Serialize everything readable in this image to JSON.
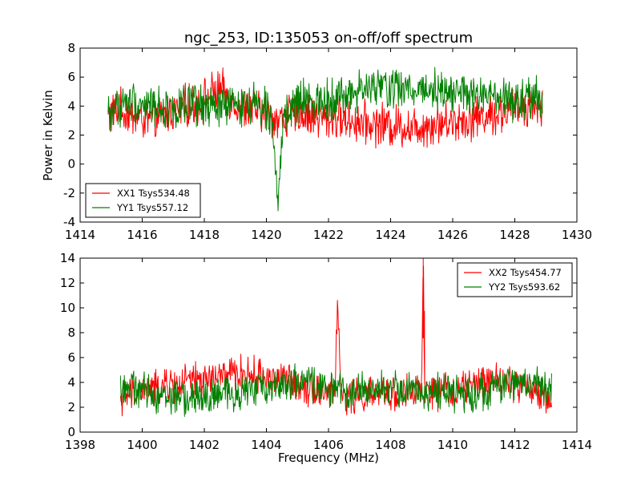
{
  "colors": {
    "xx": "#ff0000",
    "yy": "#008000"
  },
  "chart_data": [
    {
      "type": "line",
      "title": "ngc_253, ID:135053 on-off/off spectrum",
      "xlabel": "",
      "ylabel": "Power in Kelvin",
      "xlim": [
        1414,
        1430
      ],
      "ylim": [
        -4,
        8
      ],
      "xticks": [
        1414,
        1416,
        1418,
        1420,
        1422,
        1424,
        1426,
        1428,
        1430
      ],
      "yticks": [
        -4,
        -2,
        0,
        2,
        4,
        6,
        8
      ],
      "grid": false,
      "legend": "lower-left",
      "series": [
        {
          "name": "XX1 Tsys534.48",
          "color": "#ff0000",
          "x": [
            1414.9,
            1415.2,
            1415.5,
            1415.8,
            1416.1,
            1416.4,
            1416.7,
            1417.0,
            1417.3,
            1417.6,
            1417.9,
            1418.2,
            1418.5,
            1418.8,
            1419.1,
            1419.4,
            1419.7,
            1420.0,
            1420.2,
            1420.4,
            1420.6,
            1420.8,
            1421.0,
            1421.3,
            1421.6,
            1421.9,
            1422.2,
            1422.5,
            1422.8,
            1423.1,
            1423.4,
            1423.7,
            1424.0,
            1424.3,
            1424.6,
            1424.9,
            1425.2,
            1425.5,
            1425.8,
            1426.1,
            1426.4,
            1426.7,
            1427.0,
            1427.3,
            1427.6,
            1427.9,
            1428.2,
            1428.5,
            1428.9
          ],
          "y": [
            3.2,
            3.8,
            3.5,
            3.3,
            3.0,
            3.1,
            3.4,
            3.6,
            3.9,
            4.1,
            4.3,
            4.8,
            5.1,
            4.6,
            4.0,
            3.8,
            3.6,
            3.5,
            3.3,
            3.0,
            3.2,
            3.4,
            3.5,
            3.4,
            3.3,
            3.1,
            3.2,
            3.1,
            3.0,
            2.9,
            2.7,
            2.8,
            2.6,
            2.7,
            2.5,
            2.6,
            2.7,
            2.8,
            2.9,
            3.0,
            3.1,
            3.2,
            3.3,
            3.4,
            3.6,
            3.8,
            4.0,
            4.1,
            4.0
          ]
        },
        {
          "name": "YY1 Tsys557.12",
          "color": "#008000",
          "x": [
            1414.9,
            1415.2,
            1415.5,
            1415.8,
            1416.1,
            1416.4,
            1416.7,
            1417.0,
            1417.3,
            1417.6,
            1417.9,
            1418.2,
            1418.5,
            1418.8,
            1419.1,
            1419.4,
            1419.7,
            1420.0,
            1420.2,
            1420.35,
            1420.45,
            1420.6,
            1420.8,
            1421.0,
            1421.3,
            1421.6,
            1421.9,
            1422.2,
            1422.5,
            1422.8,
            1423.1,
            1423.4,
            1423.7,
            1424.0,
            1424.3,
            1424.6,
            1424.9,
            1425.2,
            1425.5,
            1425.8,
            1426.1,
            1426.4,
            1426.7,
            1427.0,
            1427.3,
            1427.6,
            1427.9,
            1428.2,
            1428.5,
            1428.9
          ],
          "y": [
            3.5,
            4.0,
            4.2,
            4.3,
            4.1,
            4.0,
            3.9,
            3.8,
            3.9,
            4.0,
            3.9,
            3.8,
            3.9,
            4.0,
            4.1,
            4.2,
            4.3,
            4.0,
            3.2,
            -2.5,
            0.5,
            3.0,
            3.8,
            4.2,
            4.3,
            4.4,
            4.5,
            4.6,
            4.7,
            4.9,
            5.1,
            5.2,
            5.3,
            5.3,
            5.2,
            5.1,
            5.2,
            5.3,
            5.2,
            5.1,
            5.0,
            4.8,
            4.7,
            4.6,
            4.5,
            4.4,
            4.3,
            4.3,
            4.4,
            4.5
          ]
        }
      ]
    },
    {
      "type": "line",
      "title": "",
      "xlabel": "Frequency (MHz)",
      "ylabel": "",
      "xlim": [
        1398,
        1414
      ],
      "ylim": [
        0,
        14
      ],
      "xticks": [
        1398,
        1400,
        1402,
        1404,
        1406,
        1408,
        1410,
        1412,
        1414
      ],
      "yticks": [
        0,
        2,
        4,
        6,
        8,
        10,
        12,
        14
      ],
      "grid": false,
      "legend": "upper-right",
      "series": [
        {
          "name": "XX2 Tsys454.77",
          "color": "#ff0000",
          "x": [
            1399.3,
            1399.6,
            1399.9,
            1400.2,
            1400.5,
            1400.8,
            1401.1,
            1401.4,
            1401.7,
            1402.0,
            1402.3,
            1402.6,
            1402.9,
            1403.2,
            1403.5,
            1403.8,
            1404.1,
            1404.4,
            1404.7,
            1405.0,
            1405.3,
            1405.6,
            1405.9,
            1406.2,
            1406.3,
            1406.4,
            1406.7,
            1407.0,
            1407.3,
            1407.6,
            1407.9,
            1408.2,
            1408.5,
            1408.8,
            1409.0,
            1409.05,
            1409.1,
            1409.4,
            1409.7,
            1410.0,
            1410.3,
            1410.6,
            1410.9,
            1411.2,
            1411.5,
            1411.8,
            1412.1,
            1412.4,
            1412.7,
            1413.2
          ],
          "y": [
            2.8,
            3.0,
            3.2,
            3.4,
            3.5,
            3.7,
            3.8,
            4.0,
            4.1,
            4.2,
            4.3,
            4.5,
            4.6,
            4.7,
            4.6,
            4.5,
            4.4,
            4.3,
            4.1,
            3.9,
            3.7,
            3.5,
            3.3,
            3.1,
            11.0,
            3.0,
            2.9,
            2.9,
            3.0,
            3.0,
            3.1,
            3.1,
            3.2,
            3.2,
            3.3,
            14.0,
            3.3,
            3.2,
            3.2,
            3.3,
            3.5,
            3.7,
            3.9,
            4.1,
            4.2,
            4.0,
            3.8,
            3.6,
            3.2,
            2.5
          ]
        },
        {
          "name": "YY2 Tsys593.62",
          "color": "#008000",
          "x": [
            1399.3,
            1399.6,
            1399.9,
            1400.2,
            1400.5,
            1400.8,
            1401.1,
            1401.4,
            1401.7,
            1402.0,
            1402.3,
            1402.6,
            1402.9,
            1403.2,
            1403.5,
            1403.8,
            1404.1,
            1404.4,
            1404.7,
            1405.0,
            1405.3,
            1405.6,
            1405.9,
            1406.2,
            1406.5,
            1406.8,
            1407.1,
            1407.4,
            1407.7,
            1408.0,
            1408.3,
            1408.6,
            1408.9,
            1409.2,
            1409.5,
            1409.8,
            1410.1,
            1410.4,
            1410.7,
            1411.0,
            1411.3,
            1411.6,
            1411.9,
            1412.2,
            1412.5,
            1412.8,
            1413.2
          ],
          "y": [
            3.6,
            3.5,
            3.4,
            3.2,
            3.0,
            2.9,
            2.8,
            2.7,
            2.7,
            2.8,
            2.9,
            3.0,
            3.1,
            3.2,
            3.4,
            3.6,
            3.8,
            3.9,
            4.0,
            4.0,
            3.9,
            3.8,
            3.6,
            3.4,
            3.3,
            3.3,
            3.4,
            3.4,
            3.5,
            3.5,
            3.4,
            3.3,
            3.3,
            3.2,
            3.2,
            3.2,
            3.1,
            3.1,
            3.2,
            3.3,
            3.5,
            3.7,
            3.9,
            4.0,
            4.0,
            3.8,
            3.6
          ]
        }
      ]
    }
  ]
}
